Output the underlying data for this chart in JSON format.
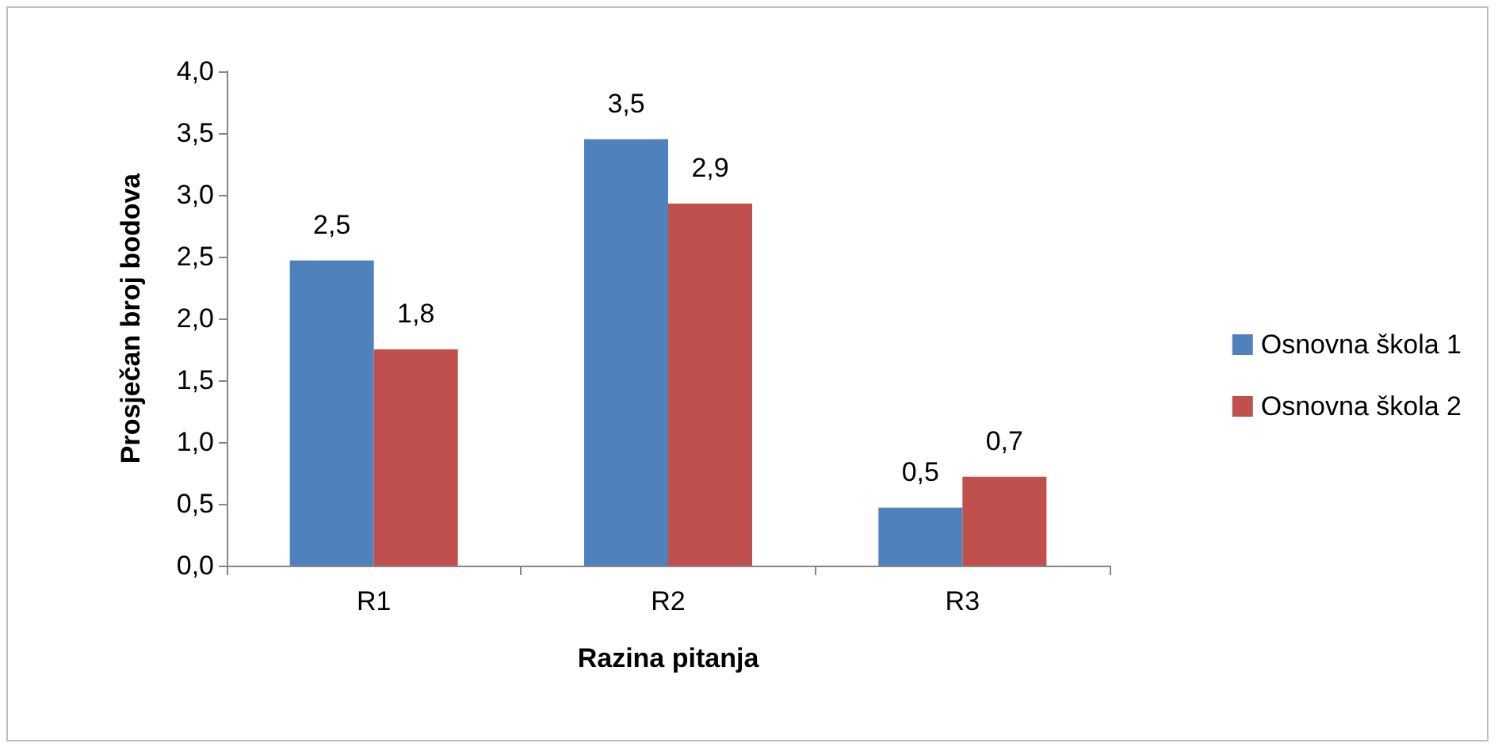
{
  "chart_data": {
    "type": "bar",
    "xlabel": "Razina pitanja",
    "ylabel": "Prosječan broj bodova",
    "categories": [
      "R1",
      "R2",
      "R3"
    ],
    "series": [
      {
        "name": "Osnovna škola 1",
        "color": "#4f81bd",
        "values": [
          2.47,
          3.45,
          0.47
        ],
        "value_labels": [
          "2,5",
          "3,5",
          "0,5"
        ]
      },
      {
        "name": "Osnovna škola 2",
        "color": "#c0504d",
        "values": [
          1.75,
          2.93,
          0.72
        ],
        "value_labels": [
          "1,8",
          "2,9",
          "0,7"
        ]
      }
    ],
    "ylim": [
      0,
      4
    ],
    "yticks": [
      {
        "value": 0,
        "label": "0,0"
      },
      {
        "value": 0.5,
        "label": "0,5"
      },
      {
        "value": 1,
        "label": "1,0"
      },
      {
        "value": 1.5,
        "label": "1,5"
      },
      {
        "value": 2,
        "label": "2,0"
      },
      {
        "value": 2.5,
        "label": "2,5"
      },
      {
        "value": 3,
        "label": "3,0"
      },
      {
        "value": 3.5,
        "label": "3,5"
      },
      {
        "value": 4,
        "label": "4,0"
      }
    ],
    "grid": false,
    "legend": "right"
  }
}
